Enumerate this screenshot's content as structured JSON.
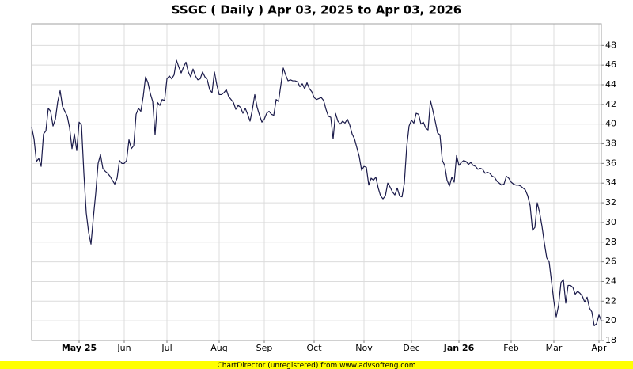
{
  "chart_data": {
    "type": "line",
    "title": "SSGC ( Daily ) Apr 03, 2025 to Apr 03, 2026",
    "footer": "ChartDirector (unregistered) from www.advsofteng.com",
    "color": "#1a1a4a",
    "grid": true,
    "ylim": [
      18,
      50.2
    ],
    "yticks": [
      18,
      20,
      22,
      24,
      26,
      28,
      30,
      32,
      34,
      36,
      38,
      40,
      42,
      44,
      46,
      48
    ],
    "categories": [
      null,
      null,
      null,
      null,
      null,
      null,
      null,
      null,
      null,
      null,
      null,
      null,
      null,
      null,
      null,
      null,
      null,
      null,
      null,
      null,
      "May 25",
      null,
      null,
      null,
      null,
      null,
      null,
      null,
      null,
      null,
      null,
      null,
      null,
      null,
      null,
      null,
      null,
      null,
      null,
      "Jun",
      null,
      null,
      null,
      null,
      null,
      null,
      null,
      null,
      null,
      null,
      null,
      null,
      null,
      null,
      null,
      null,
      null,
      "Jul",
      null,
      null,
      null,
      null,
      null,
      null,
      null,
      null,
      null,
      null,
      null,
      null,
      null,
      null,
      null,
      null,
      null,
      null,
      null,
      null,
      null,
      "Aug",
      null,
      null,
      null,
      null,
      null,
      null,
      null,
      null,
      null,
      null,
      null,
      null,
      null,
      null,
      null,
      null,
      null,
      null,
      "Sep",
      null,
      null,
      null,
      null,
      null,
      null,
      null,
      null,
      null,
      null,
      null,
      null,
      null,
      null,
      null,
      null,
      null,
      null,
      null,
      null,
      "Oct",
      null,
      null,
      null,
      null,
      null,
      null,
      null,
      null,
      null,
      null,
      null,
      null,
      null,
      null,
      null,
      null,
      null,
      null,
      null,
      null,
      "Nov",
      null,
      null,
      null,
      null,
      null,
      null,
      null,
      null,
      null,
      null,
      null,
      null,
      null,
      null,
      null,
      null,
      null,
      null,
      null,
      "Dec",
      null,
      null,
      null,
      null,
      null,
      null,
      null,
      null,
      null,
      null,
      null,
      null,
      null,
      null,
      null,
      null,
      null,
      null,
      null,
      "Jan 26",
      null,
      null,
      null,
      null,
      null,
      null,
      null,
      null,
      null,
      null,
      null,
      null,
      null,
      null,
      null,
      null,
      null,
      null,
      null,
      null,
      null,
      "Feb",
      null,
      null,
      null,
      null,
      null,
      null,
      null,
      null,
      null,
      null,
      null,
      null,
      null,
      null,
      null,
      null,
      null,
      "Mar",
      null,
      null,
      null,
      null,
      null,
      null,
      null,
      null,
      null,
      null,
      null,
      null,
      null,
      null,
      null,
      null,
      null,
      null,
      "Apr",
      null
    ],
    "values": [
      39.7,
      38.5,
      36.2,
      36.5,
      35.7,
      39.0,
      39.3,
      41.6,
      41.3,
      39.8,
      40.5,
      42.3,
      43.4,
      41.8,
      41.3,
      40.8,
      39.6,
      37.5,
      39.0,
      37.3,
      40.2,
      39.9,
      35.0,
      31.0,
      29.0,
      27.8,
      30.5,
      33.0,
      36.0,
      36.9,
      35.5,
      35.2,
      35.0,
      34.7,
      34.3,
      33.9,
      34.5,
      36.3,
      36.0,
      36.0,
      36.3,
      38.4,
      37.5,
      37.8,
      41.0,
      41.6,
      41.3,
      42.8,
      44.8,
      44.2,
      43.1,
      42.3,
      38.9,
      42.2,
      41.9,
      42.5,
      42.4,
      44.6,
      44.9,
      44.6,
      45.0,
      46.5,
      45.8,
      45.2,
      45.8,
      46.3,
      45.3,
      44.8,
      45.6,
      44.9,
      44.5,
      44.6,
      45.3,
      44.8,
      44.5,
      43.5,
      43.2,
      45.3,
      44.0,
      43.0,
      43.0,
      43.2,
      43.5,
      42.8,
      42.5,
      42.2,
      41.5,
      41.9,
      41.7,
      41.1,
      41.6,
      41.0,
      40.3,
      41.5,
      43.0,
      41.7,
      40.9,
      40.2,
      40.5,
      41.1,
      41.3,
      41.0,
      40.9,
      42.5,
      42.3,
      44.0,
      45.7,
      45.0,
      44.4,
      44.5,
      44.4,
      44.4,
      44.3,
      43.8,
      44.1,
      43.6,
      44.2,
      43.6,
      43.3,
      42.7,
      42.5,
      42.6,
      42.7,
      42.4,
      41.5,
      40.8,
      40.7,
      38.5,
      41.1,
      40.3,
      40.0,
      40.3,
      40.1,
      40.5,
      39.9,
      39.0,
      38.5,
      37.6,
      36.7,
      35.3,
      35.7,
      35.6,
      33.8,
      34.5,
      34.3,
      34.6,
      33.5,
      32.7,
      32.4,
      32.7,
      34.0,
      33.6,
      33.1,
      32.8,
      33.5,
      32.7,
      32.6,
      34.0,
      37.7,
      39.8,
      40.4,
      40.1,
      41.1,
      41.0,
      40.0,
      40.2,
      39.6,
      39.4,
      42.4,
      41.4,
      40.3,
      39.1,
      38.9,
      36.3,
      35.8,
      34.3,
      33.7,
      34.6,
      34.1,
      36.8,
      35.8,
      36.1,
      36.3,
      36.2,
      35.9,
      36.1,
      35.8,
      35.7,
      35.4,
      35.5,
      35.4,
      35.0,
      35.1,
      35.0,
      34.7,
      34.6,
      34.2,
      34.0,
      33.8,
      33.9,
      34.7,
      34.5,
      34.1,
      33.9,
      33.8,
      33.8,
      33.7,
      33.5,
      33.3,
      32.7,
      31.7,
      29.2,
      29.5,
      32.0,
      31.0,
      29.6,
      27.9,
      26.4,
      26.0,
      24.0,
      22.0,
      20.4,
      21.6,
      23.9,
      24.2,
      21.8,
      23.6,
      23.6,
      23.4,
      22.7,
      23.0,
      22.8,
      22.5,
      21.9,
      22.4,
      21.3,
      20.9,
      19.5,
      19.7,
      20.6,
      20.0
    ]
  }
}
